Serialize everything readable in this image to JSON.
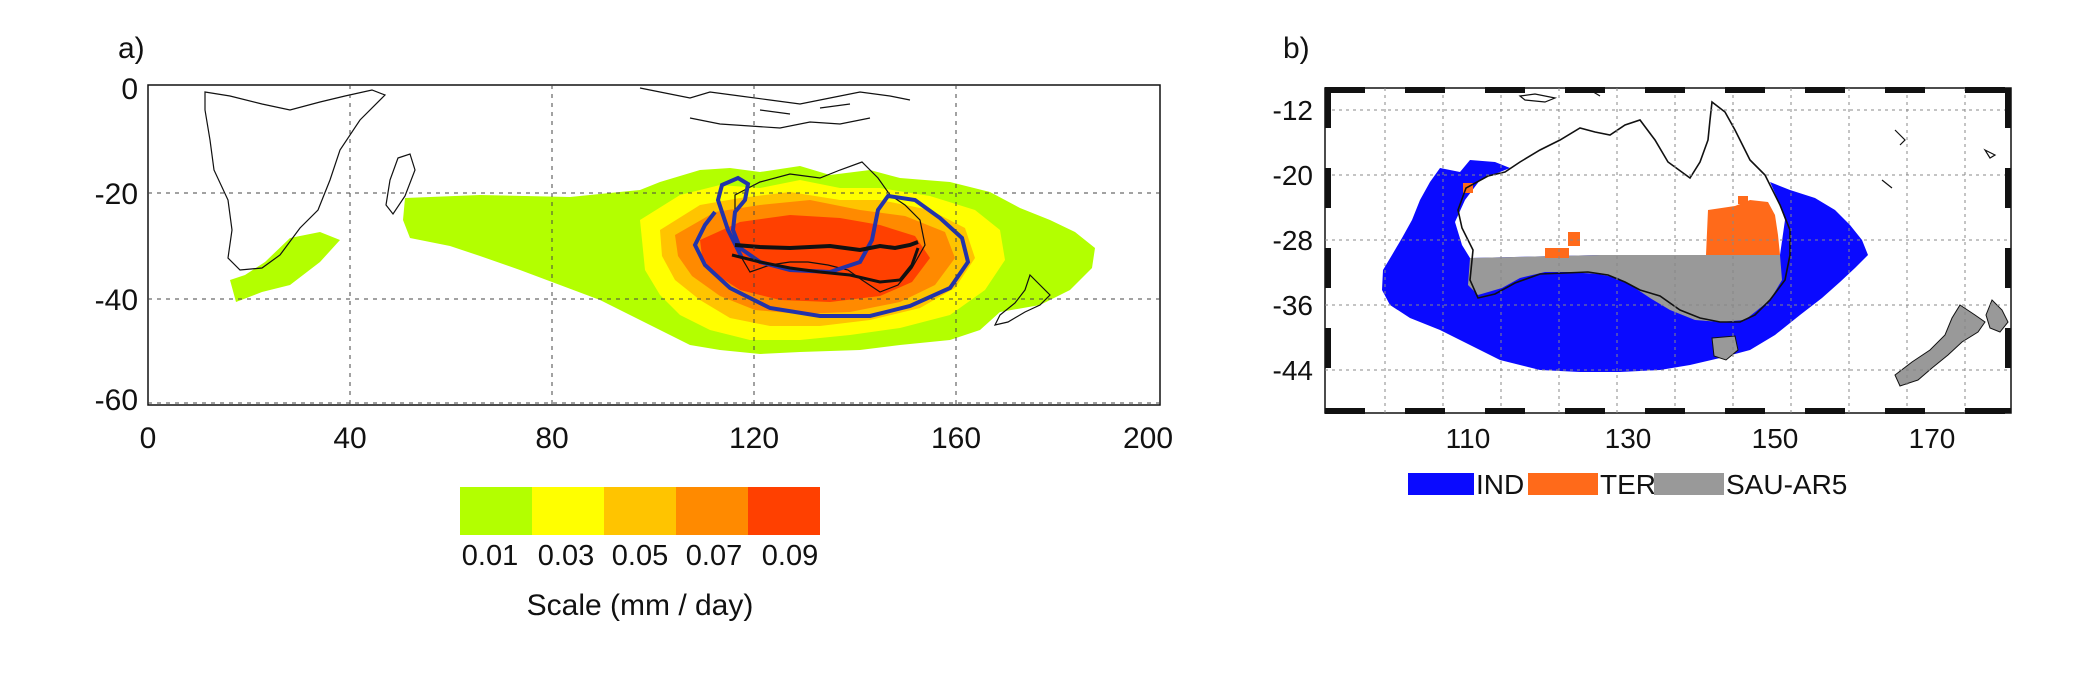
{
  "panel_a": {
    "label": "a)",
    "x_ticks": [
      "0",
      "40",
      "80",
      "120",
      "160",
      "200"
    ],
    "y_ticks": [
      "0",
      "-20",
      "-40",
      "-60"
    ],
    "colorbar": {
      "colors": [
        "#b3ff00",
        "#ffff00",
        "#ffc400",
        "#ff8a00",
        "#ff4000"
      ],
      "labels": [
        "0.01",
        "0.03",
        "0.05",
        "0.07",
        "0.09"
      ],
      "title": "Scale (mm / day)"
    },
    "colors": {
      "contour": "#2233aa",
      "outline": "#111111"
    }
  },
  "panel_b": {
    "label": "b)",
    "x_ticks": [
      "110",
      "130",
      "150",
      "170"
    ],
    "y_ticks": [
      "-12",
      "-20",
      "-28",
      "-36",
      "-44"
    ],
    "legend": [
      {
        "name": "IND",
        "color": "#0a0aff"
      },
      {
        "name": "TER",
        "color": "#ff6a1a"
      },
      {
        "name": "SAU-AR5",
        "color": "#999999"
      }
    ]
  }
}
